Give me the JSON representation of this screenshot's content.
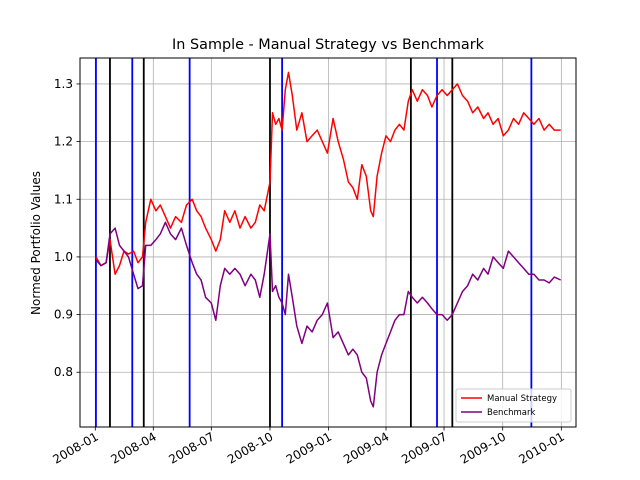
{
  "chart_data": {
    "type": "line",
    "title": "In Sample - Manual Strategy vs Benchmark",
    "ylabel": "Normed Portfolio Values",
    "xlabel": "",
    "x_range": [
      "2007-12-08",
      "2010-01-24"
    ],
    "ylim": [
      0.705,
      1.345
    ],
    "x_ticks": [
      {
        "date": "2008-01-01",
        "label": "2008-01"
      },
      {
        "date": "2008-04-01",
        "label": "2008-04"
      },
      {
        "date": "2008-07-01",
        "label": "2008-07"
      },
      {
        "date": "2008-10-01",
        "label": "2008-10"
      },
      {
        "date": "2009-01-01",
        "label": "2009-01"
      },
      {
        "date": "2009-04-01",
        "label": "2009-04"
      },
      {
        "date": "2009-07-01",
        "label": "2009-07"
      },
      {
        "date": "2009-10-01",
        "label": "2009-10"
      },
      {
        "date": "2010-01-01",
        "label": "2010-01"
      }
    ],
    "y_ticks": [
      0.8,
      0.9,
      1.0,
      1.1,
      1.2,
      1.3
    ],
    "grid": true,
    "legend_position": "lower-right",
    "series": [
      {
        "name": "Manual Strategy",
        "color": "#ff0000",
        "points": [
          [
            "2008-01-02",
            1.0
          ],
          [
            "2008-01-10",
            0.985
          ],
          [
            "2008-01-18",
            0.99
          ],
          [
            "2008-01-24",
            1.03
          ],
          [
            "2008-02-01",
            0.97
          ],
          [
            "2008-02-08",
            0.985
          ],
          [
            "2008-02-15",
            1.01
          ],
          [
            "2008-02-22",
            1.005
          ],
          [
            "2008-03-01",
            1.01
          ],
          [
            "2008-03-08",
            0.99
          ],
          [
            "2008-03-15",
            1.0
          ],
          [
            "2008-03-20",
            1.06
          ],
          [
            "2008-03-28",
            1.1
          ],
          [
            "2008-04-05",
            1.08
          ],
          [
            "2008-04-12",
            1.09
          ],
          [
            "2008-04-20",
            1.07
          ],
          [
            "2008-04-28",
            1.05
          ],
          [
            "2008-05-06",
            1.07
          ],
          [
            "2008-05-15",
            1.06
          ],
          [
            "2008-05-23",
            1.09
          ],
          [
            "2008-06-01",
            1.1
          ],
          [
            "2008-06-08",
            1.08
          ],
          [
            "2008-06-15",
            1.07
          ],
          [
            "2008-06-22",
            1.05
          ],
          [
            "2008-07-01",
            1.03
          ],
          [
            "2008-07-08",
            1.01
          ],
          [
            "2008-07-15",
            1.03
          ],
          [
            "2008-07-22",
            1.08
          ],
          [
            "2008-07-30",
            1.06
          ],
          [
            "2008-08-07",
            1.08
          ],
          [
            "2008-08-15",
            1.05
          ],
          [
            "2008-08-23",
            1.07
          ],
          [
            "2008-09-01",
            1.05
          ],
          [
            "2008-09-08",
            1.06
          ],
          [
            "2008-09-15",
            1.09
          ],
          [
            "2008-09-22",
            1.08
          ],
          [
            "2008-10-01",
            1.13
          ],
          [
            "2008-10-05",
            1.25
          ],
          [
            "2008-10-10",
            1.23
          ],
          [
            "2008-10-15",
            1.24
          ],
          [
            "2008-10-20",
            1.22
          ],
          [
            "2008-10-25",
            1.29
          ],
          [
            "2008-10-30",
            1.32
          ],
          [
            "2008-11-05",
            1.28
          ],
          [
            "2008-11-12",
            1.22
          ],
          [
            "2008-11-20",
            1.25
          ],
          [
            "2008-11-28",
            1.2
          ],
          [
            "2008-12-06",
            1.21
          ],
          [
            "2008-12-14",
            1.22
          ],
          [
            "2008-12-22",
            1.2
          ],
          [
            "2008-12-30",
            1.18
          ],
          [
            "2009-01-08",
            1.24
          ],
          [
            "2009-01-16",
            1.2
          ],
          [
            "2009-01-24",
            1.17
          ],
          [
            "2009-02-01",
            1.13
          ],
          [
            "2009-02-08",
            1.12
          ],
          [
            "2009-02-15",
            1.1
          ],
          [
            "2009-02-22",
            1.16
          ],
          [
            "2009-03-01",
            1.14
          ],
          [
            "2009-03-08",
            1.08
          ],
          [
            "2009-03-12",
            1.07
          ],
          [
            "2009-03-18",
            1.14
          ],
          [
            "2009-03-25",
            1.18
          ],
          [
            "2009-04-01",
            1.21
          ],
          [
            "2009-04-08",
            1.2
          ],
          [
            "2009-04-15",
            1.22
          ],
          [
            "2009-04-22",
            1.23
          ],
          [
            "2009-04-29",
            1.22
          ],
          [
            "2009-05-06",
            1.27
          ],
          [
            "2009-05-12",
            1.29
          ],
          [
            "2009-05-20",
            1.27
          ],
          [
            "2009-05-28",
            1.29
          ],
          [
            "2009-06-05",
            1.28
          ],
          [
            "2009-06-12",
            1.26
          ],
          [
            "2009-06-20",
            1.28
          ],
          [
            "2009-06-28",
            1.29
          ],
          [
            "2009-07-06",
            1.28
          ],
          [
            "2009-07-14",
            1.29
          ],
          [
            "2009-07-22",
            1.3
          ],
          [
            "2009-07-30",
            1.28
          ],
          [
            "2009-08-07",
            1.27
          ],
          [
            "2009-08-15",
            1.25
          ],
          [
            "2009-08-23",
            1.26
          ],
          [
            "2009-09-01",
            1.24
          ],
          [
            "2009-09-08",
            1.25
          ],
          [
            "2009-09-16",
            1.23
          ],
          [
            "2009-09-24",
            1.24
          ],
          [
            "2009-10-02",
            1.21
          ],
          [
            "2009-10-10",
            1.22
          ],
          [
            "2009-10-18",
            1.24
          ],
          [
            "2009-10-26",
            1.23
          ],
          [
            "2009-11-03",
            1.25
          ],
          [
            "2009-11-11",
            1.24
          ],
          [
            "2009-11-19",
            1.23
          ],
          [
            "2009-11-27",
            1.24
          ],
          [
            "2009-12-05",
            1.22
          ],
          [
            "2009-12-13",
            1.23
          ],
          [
            "2009-12-21",
            1.22
          ],
          [
            "2009-12-31",
            1.22
          ]
        ]
      },
      {
        "name": "Benchmark",
        "color": "#800080",
        "points": [
          [
            "2008-01-02",
            0.995
          ],
          [
            "2008-01-10",
            0.985
          ],
          [
            "2008-01-18",
            0.99
          ],
          [
            "2008-01-24",
            1.04
          ],
          [
            "2008-02-01",
            1.05
          ],
          [
            "2008-02-08",
            1.02
          ],
          [
            "2008-02-15",
            1.01
          ],
          [
            "2008-02-22",
            1.0
          ],
          [
            "2008-03-01",
            0.97
          ],
          [
            "2008-03-08",
            0.945
          ],
          [
            "2008-03-15",
            0.95
          ],
          [
            "2008-03-20",
            1.02
          ],
          [
            "2008-03-28",
            1.02
          ],
          [
            "2008-04-05",
            1.03
          ],
          [
            "2008-04-12",
            1.04
          ],
          [
            "2008-04-20",
            1.06
          ],
          [
            "2008-04-28",
            1.04
          ],
          [
            "2008-05-06",
            1.03
          ],
          [
            "2008-05-15",
            1.05
          ],
          [
            "2008-05-23",
            1.02
          ],
          [
            "2008-06-01",
            0.99
          ],
          [
            "2008-06-08",
            0.97
          ],
          [
            "2008-06-15",
            0.96
          ],
          [
            "2008-06-22",
            0.93
          ],
          [
            "2008-07-01",
            0.92
          ],
          [
            "2008-07-08",
            0.89
          ],
          [
            "2008-07-15",
            0.95
          ],
          [
            "2008-07-22",
            0.98
          ],
          [
            "2008-07-30",
            0.97
          ],
          [
            "2008-08-07",
            0.98
          ],
          [
            "2008-08-15",
            0.97
          ],
          [
            "2008-08-23",
            0.95
          ],
          [
            "2008-09-01",
            0.97
          ],
          [
            "2008-09-08",
            0.96
          ],
          [
            "2008-09-15",
            0.93
          ],
          [
            "2008-09-22",
            0.97
          ],
          [
            "2008-10-01",
            1.04
          ],
          [
            "2008-10-05",
            0.94
          ],
          [
            "2008-10-10",
            0.95
          ],
          [
            "2008-10-15",
            0.93
          ],
          [
            "2008-10-20",
            0.92
          ],
          [
            "2008-10-25",
            0.9
          ],
          [
            "2008-10-30",
            0.97
          ],
          [
            "2008-11-05",
            0.93
          ],
          [
            "2008-11-12",
            0.88
          ],
          [
            "2008-11-20",
            0.85
          ],
          [
            "2008-11-28",
            0.88
          ],
          [
            "2008-12-06",
            0.87
          ],
          [
            "2008-12-14",
            0.89
          ],
          [
            "2008-12-22",
            0.9
          ],
          [
            "2008-12-30",
            0.92
          ],
          [
            "2009-01-08",
            0.86
          ],
          [
            "2009-01-16",
            0.87
          ],
          [
            "2009-01-24",
            0.85
          ],
          [
            "2009-02-01",
            0.83
          ],
          [
            "2009-02-08",
            0.84
          ],
          [
            "2009-02-15",
            0.83
          ],
          [
            "2009-02-22",
            0.8
          ],
          [
            "2009-03-01",
            0.79
          ],
          [
            "2009-03-08",
            0.75
          ],
          [
            "2009-03-12",
            0.74
          ],
          [
            "2009-03-18",
            0.8
          ],
          [
            "2009-03-25",
            0.83
          ],
          [
            "2009-04-01",
            0.85
          ],
          [
            "2009-04-08",
            0.87
          ],
          [
            "2009-04-15",
            0.89
          ],
          [
            "2009-04-22",
            0.9
          ],
          [
            "2009-04-29",
            0.9
          ],
          [
            "2009-05-06",
            0.94
          ],
          [
            "2009-05-12",
            0.93
          ],
          [
            "2009-05-20",
            0.92
          ],
          [
            "2009-05-28",
            0.93
          ],
          [
            "2009-06-05",
            0.92
          ],
          [
            "2009-06-12",
            0.91
          ],
          [
            "2009-06-20",
            0.9
          ],
          [
            "2009-06-28",
            0.9
          ],
          [
            "2009-07-06",
            0.89
          ],
          [
            "2009-07-14",
            0.9
          ],
          [
            "2009-07-22",
            0.92
          ],
          [
            "2009-07-30",
            0.94
          ],
          [
            "2009-08-07",
            0.95
          ],
          [
            "2009-08-15",
            0.97
          ],
          [
            "2009-08-23",
            0.96
          ],
          [
            "2009-09-01",
            0.98
          ],
          [
            "2009-09-08",
            0.97
          ],
          [
            "2009-09-16",
            1.0
          ],
          [
            "2009-09-24",
            0.99
          ],
          [
            "2009-10-02",
            0.98
          ],
          [
            "2009-10-10",
            1.01
          ],
          [
            "2009-10-18",
            1.0
          ],
          [
            "2009-10-26",
            0.99
          ],
          [
            "2009-11-03",
            0.98
          ],
          [
            "2009-11-11",
            0.97
          ],
          [
            "2009-11-19",
            0.97
          ],
          [
            "2009-11-27",
            0.96
          ],
          [
            "2009-12-05",
            0.96
          ],
          [
            "2009-12-13",
            0.955
          ],
          [
            "2009-12-21",
            0.965
          ],
          [
            "2009-12-31",
            0.96
          ]
        ]
      }
    ],
    "vertical_markers": [
      {
        "date": "2008-01-02",
        "color": "#0000ff"
      },
      {
        "date": "2008-01-24",
        "color": "#000000"
      },
      {
        "date": "2008-02-28",
        "color": "#0000ff"
      },
      {
        "date": "2008-03-17",
        "color": "#000000"
      },
      {
        "date": "2008-05-28",
        "color": "#0000ff"
      },
      {
        "date": "2008-10-01",
        "color": "#000000"
      },
      {
        "date": "2008-10-20",
        "color": "#0000ff"
      },
      {
        "date": "2009-05-10",
        "color": "#000000"
      },
      {
        "date": "2009-06-20",
        "color": "#0000ff"
      },
      {
        "date": "2009-07-14",
        "color": "#000000"
      },
      {
        "date": "2009-11-15",
        "color": "#0000ff"
      }
    ]
  }
}
